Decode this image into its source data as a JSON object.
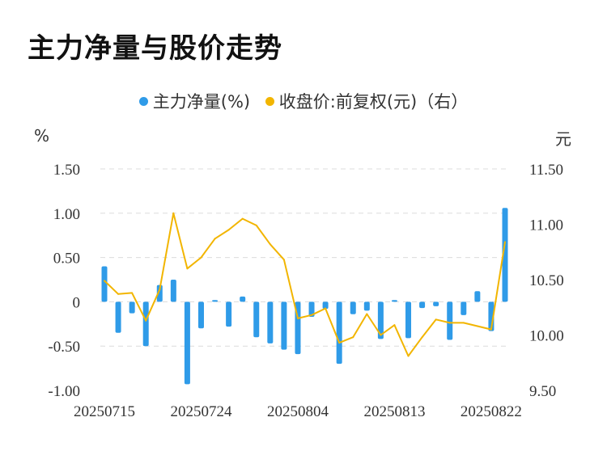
{
  "title": "主力净量与股价走势",
  "colors": {
    "bar": "#2f9be8",
    "line": "#f2b500",
    "grid": "#dcdcdc"
  },
  "chart_data": {
    "type": "bar",
    "legend": [
      "主力净量(%)",
      "收盘价:前复权(元)（右）"
    ],
    "left_unit": "%",
    "right_unit": "元",
    "left_ticks": [
      "1.50",
      "1.00",
      "0.50",
      "0",
      "-0.50",
      "-1.00"
    ],
    "right_ticks": [
      "11.50",
      "11.00",
      "10.50",
      "10.00",
      "9.50"
    ],
    "ylim_left": [
      -1.0,
      1.5
    ],
    "ylim_right": [
      9.5,
      11.5
    ],
    "x_tick_labels": [
      "20250715",
      "20250724",
      "20250804",
      "20250813",
      "20250822"
    ],
    "x_tick_indices": [
      0,
      7,
      14,
      21,
      28
    ],
    "series": [
      {
        "name": "主力净量(%)",
        "type": "bar",
        "axis": "left",
        "values": [
          0.4,
          -0.35,
          -0.13,
          -0.5,
          0.19,
          0.25,
          -0.93,
          -0.3,
          0.02,
          -0.28,
          0.06,
          -0.4,
          -0.47,
          -0.54,
          -0.59,
          -0.17,
          -0.08,
          -0.7,
          -0.14,
          -0.1,
          -0.42,
          0.02,
          -0.41,
          -0.07,
          -0.05,
          -0.43,
          -0.15,
          0.12,
          -0.33,
          1.06
        ]
      },
      {
        "name": "收盘价:前复权(元)（右）",
        "type": "line",
        "axis": "right",
        "values": [
          10.49,
          10.37,
          10.38,
          10.13,
          10.41,
          11.1,
          10.6,
          10.7,
          10.87,
          10.95,
          11.05,
          10.99,
          10.82,
          10.68,
          10.15,
          10.18,
          10.24,
          9.93,
          9.98,
          10.19,
          10.0,
          10.09,
          9.81,
          9.98,
          10.14,
          10.11,
          10.11,
          10.08,
          10.05,
          10.84
        ]
      }
    ]
  }
}
